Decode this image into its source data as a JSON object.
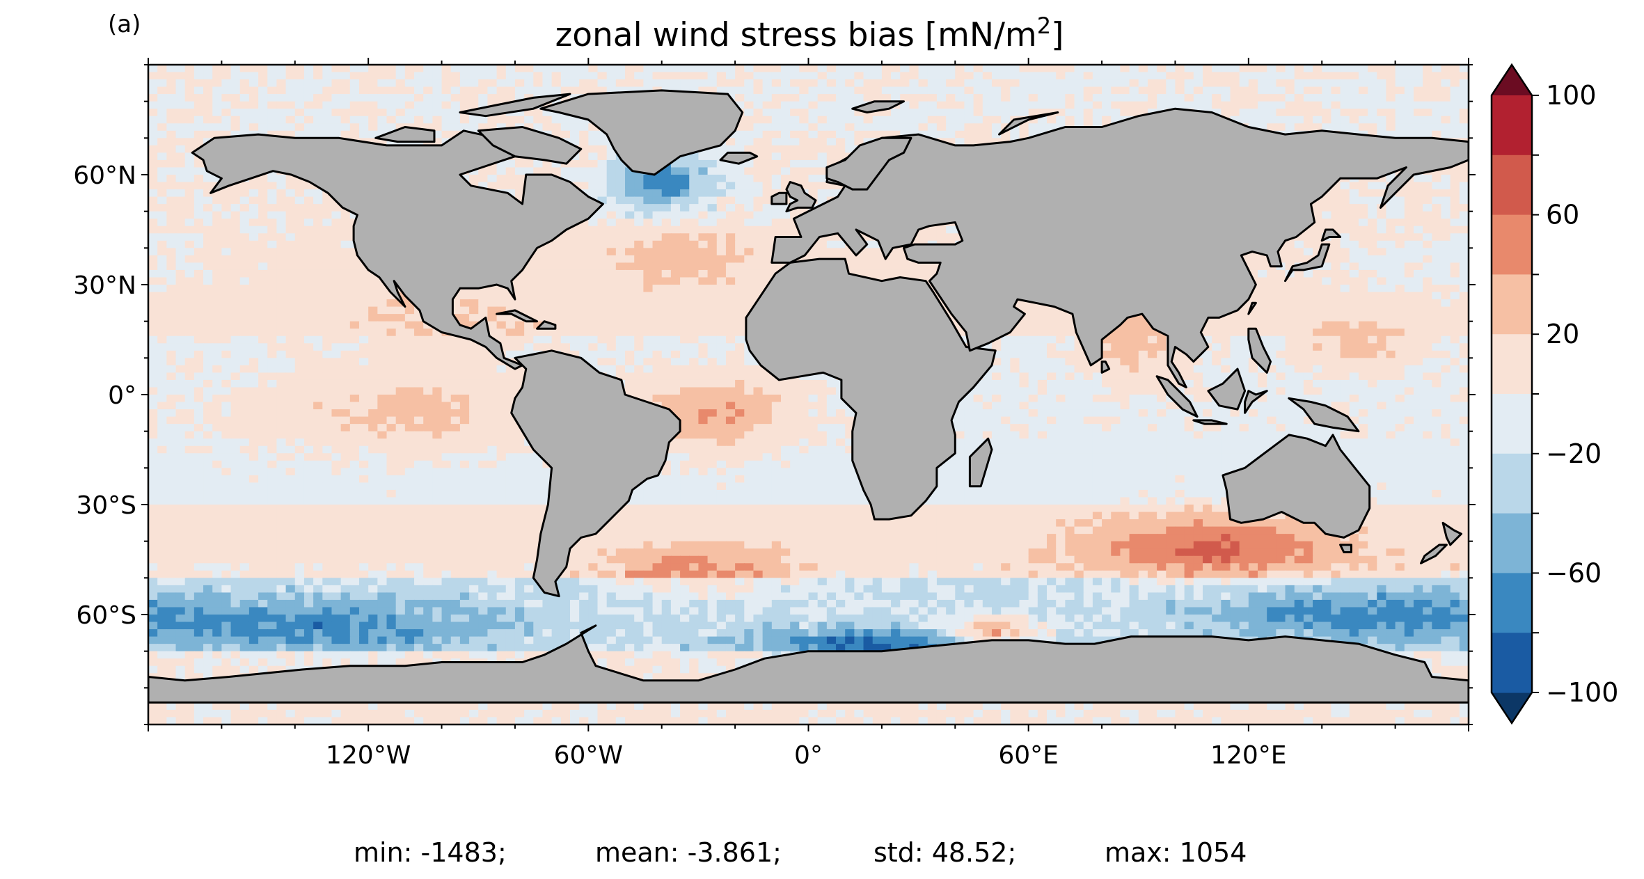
{
  "panel_label": "(a)",
  "title": "zonal wind stress bias [mN/m",
  "title_superscript": "2",
  "title_close": "]",
  "land_color": "#b0b0b0",
  "coast_color": "#000000",
  "map": {
    "lon_ticks": [
      "120°W",
      "60°W",
      "0°",
      "60°E",
      "120°E"
    ],
    "lat_ticks": [
      "60°N",
      "30°N",
      "0°",
      "30°S",
      "60°S"
    ]
  },
  "colorbar": {
    "tick_labels": [
      "100",
      "60",
      "20",
      "−20",
      "−60",
      "−100"
    ],
    "levels": [
      -100,
      -80,
      -60,
      -40,
      -20,
      0,
      20,
      40,
      60,
      80,
      100
    ],
    "colors": [
      "#1a5ba3",
      "#3a88c0",
      "#7db4d6",
      "#bad7e9",
      "#e3ecf3",
      "#f9e2d6",
      "#f6c0a4",
      "#e8896c",
      "#d15a4c",
      "#b22130"
    ],
    "extend_min_color": "#0c3766",
    "extend_max_color": "#6b0c22"
  },
  "stats": {
    "min": "min: -1483;",
    "mean": "mean: -3.861;",
    "std": "std: 48.52;",
    "max": "max: 1054"
  },
  "chart_data": {
    "type": "heatmap",
    "title": "zonal wind stress bias [mN/m2]",
    "xlim": [
      -180,
      180
    ],
    "ylim": [
      -90,
      90
    ],
    "x_ticks": [
      -120,
      -60,
      0,
      60,
      120
    ],
    "y_ticks": [
      60,
      30,
      0,
      -30,
      -60
    ],
    "color_range": [
      -100,
      100
    ],
    "colormap": "RdBu_r",
    "extend": "both",
    "summary": {
      "min": -1483,
      "mean": -3.861,
      "std": 48.52,
      "max": 1054
    },
    "notable_regions": [
      {
        "lon": -40,
        "lat": 58,
        "value": -80
      },
      {
        "lon": -25,
        "lat": -5,
        "value": 45
      },
      {
        "lon": 110,
        "lat": -42,
        "value": 55
      },
      {
        "lon": -110,
        "lat": -5,
        "value": 30
      },
      {
        "lon": -130,
        "lat": -63,
        "value": -45
      },
      {
        "lon": 150,
        "lat": -60,
        "value": -45
      },
      {
        "lon": 20,
        "lat": -68,
        "value": -60
      },
      {
        "lon": 50,
        "lat": -65,
        "value": 70
      },
      {
        "lon": -30,
        "lat": -48,
        "value": 40
      },
      {
        "lon": 90,
        "lat": 13,
        "value": 30
      },
      {
        "lon": 150,
        "lat": 13,
        "value": 30
      },
      {
        "lon": -100,
        "lat": 20,
        "value": 15
      },
      {
        "lon": -35,
        "lat": 38,
        "value": 25
      },
      {
        "lon": 170,
        "lat": 35,
        "value": -10
      }
    ]
  }
}
